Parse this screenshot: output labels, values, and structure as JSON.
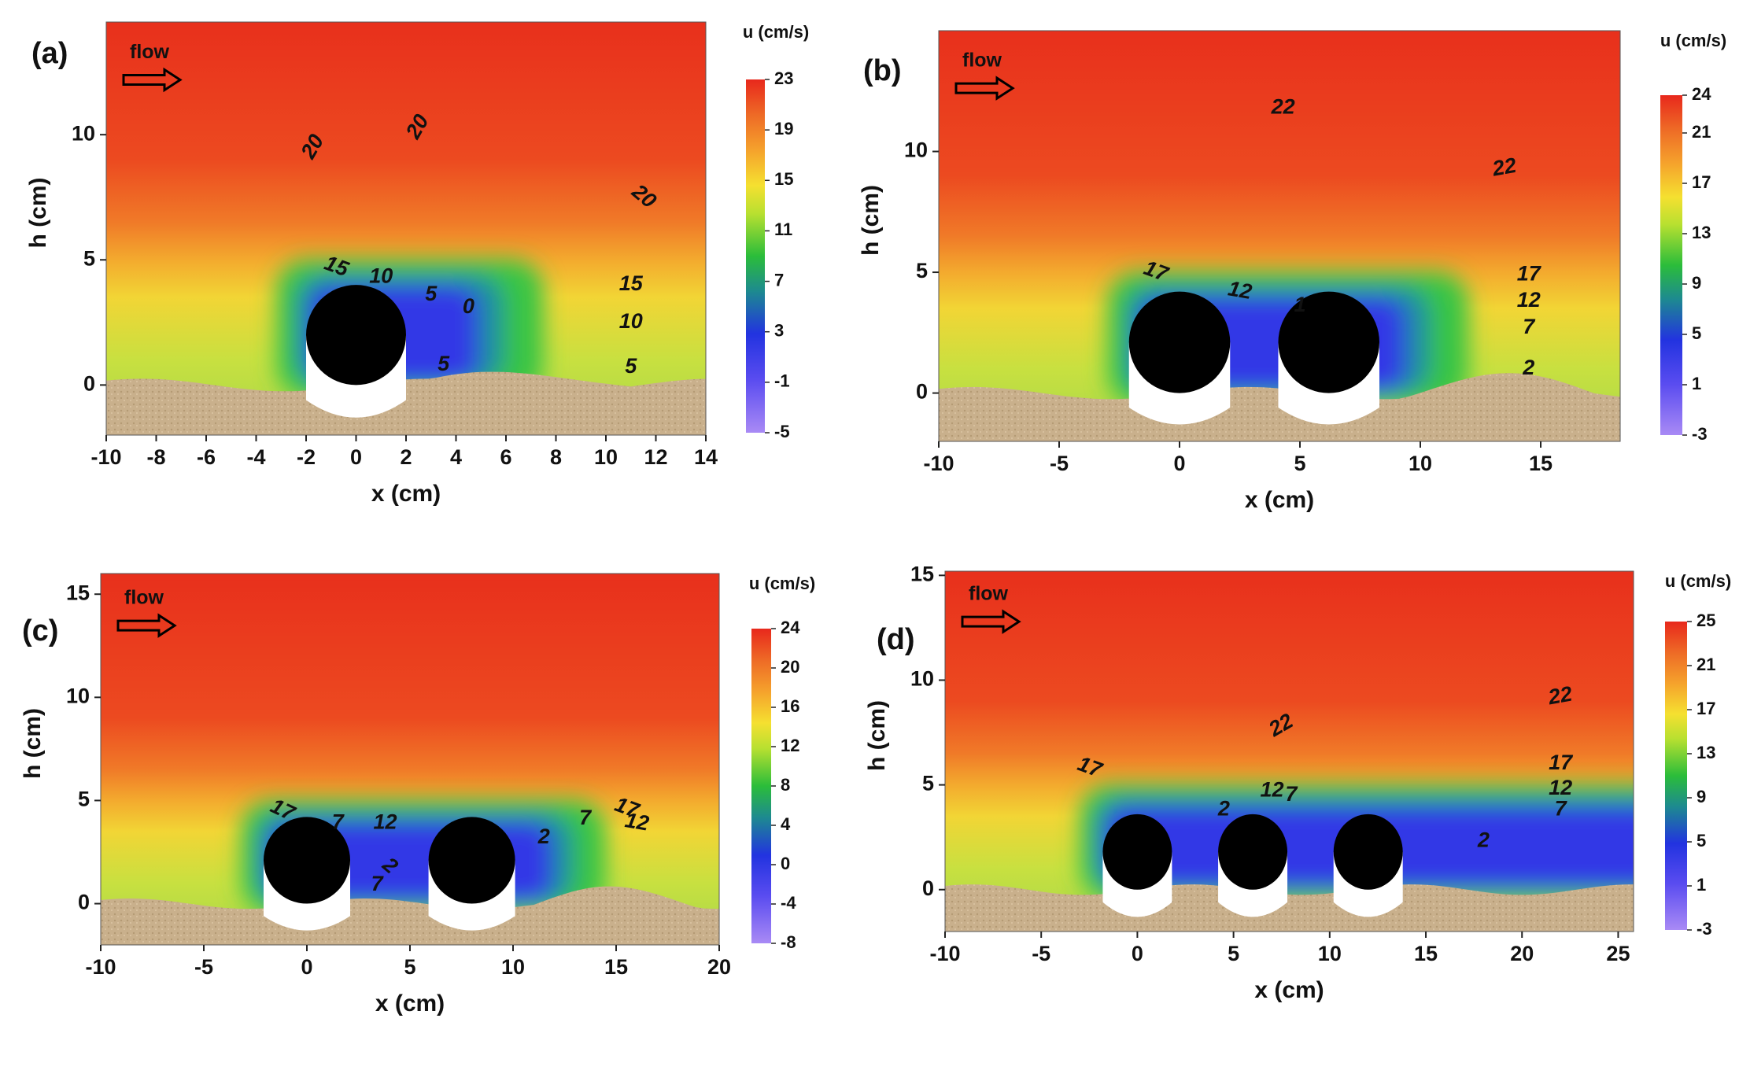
{
  "chart_data": [
    {
      "type": "contour",
      "panel_label": "(a)",
      "annotation": "flow",
      "xlabel": "x (cm)",
      "ylabel": "h (cm)",
      "colorbar_label": "u (cm/s)",
      "xlim": [
        -10,
        14
      ],
      "xticks": [
        -10,
        -8,
        -6,
        -4,
        -2,
        0,
        2,
        4,
        6,
        8,
        10,
        12,
        14
      ],
      "ylim": [
        -2,
        14.5
      ],
      "yticks": [
        0,
        5,
        10
      ],
      "zlim": [
        -5,
        23
      ],
      "zticks": [
        23,
        19,
        15,
        11,
        7,
        3,
        -1,
        -5
      ],
      "contour_labels": [
        20,
        20,
        20,
        15,
        10,
        5,
        0,
        5,
        15,
        10,
        5
      ]
    },
    {
      "type": "contour",
      "panel_label": "(b)",
      "annotation": "flow",
      "xlabel": "x (cm)",
      "ylabel": "h (cm)",
      "colorbar_label": "u (cm/s)",
      "xlim": [
        -10,
        18.3
      ],
      "xticks": [
        -10,
        -5,
        0,
        5,
        10,
        15
      ],
      "ylim": [
        -2,
        15
      ],
      "yticks": [
        0,
        5,
        10
      ],
      "zlim": [
        -3,
        24
      ],
      "zticks": [
        24,
        21,
        17,
        13,
        9,
        5,
        1,
        -3
      ],
      "contour_labels": [
        22,
        22,
        17,
        12,
        1,
        17,
        12,
        7,
        2
      ]
    },
    {
      "type": "contour",
      "panel_label": "(c)",
      "annotation": "flow",
      "xlabel": "x (cm)",
      "ylabel": "h (cm)",
      "colorbar_label": "u (cm/s)",
      "xlim": [
        -10,
        20
      ],
      "xticks": [
        -10,
        -5,
        0,
        5,
        10,
        15,
        20
      ],
      "ylim": [
        -2,
        16
      ],
      "yticks": [
        0,
        5,
        10,
        15
      ],
      "zlim": [
        -8,
        24
      ],
      "zticks": [
        24,
        20,
        16,
        12,
        8,
        4,
        0,
        -4,
        -8
      ],
      "contour_labels": [
        17,
        7,
        12,
        2,
        7,
        17,
        12,
        2,
        7
      ]
    },
    {
      "type": "contour",
      "panel_label": "(d)",
      "annotation": "flow",
      "xlabel": "x (cm)",
      "ylabel": "h (cm)",
      "colorbar_label": "u (cm/s)",
      "xlim": [
        -10,
        25.8
      ],
      "xticks": [
        -10,
        -5,
        0,
        5,
        10,
        15,
        20,
        25
      ],
      "ylim": [
        -2,
        15.2
      ],
      "yticks": [
        0,
        5,
        10,
        15
      ],
      "zlim": [
        -3,
        25
      ],
      "zticks": [
        25,
        21,
        17,
        13,
        9,
        5,
        1,
        -3
      ],
      "contour_labels": [
        22,
        22,
        17,
        2,
        12,
        7,
        17,
        12,
        7,
        2
      ]
    }
  ]
}
